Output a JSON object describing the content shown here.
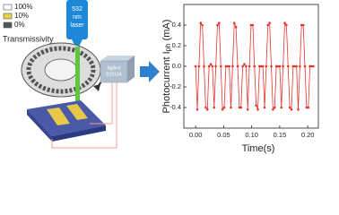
{
  "legend": {
    "title": "Transmissivity",
    "items": [
      "100%",
      "10%",
      "0%"
    ]
  },
  "laser": [
    "532",
    "nm",
    "laser"
  ],
  "instrument": [
    "Agilent",
    "B2911A"
  ],
  "chart_data": {
    "type": "line",
    "ylabel": [
      "Photocurrent I",
      "ph",
      " (mA)"
    ],
    "xlabel": "Time(s)",
    "color": "#e8332c",
    "x": [
      0,
      0.003,
      0.006,
      0.009,
      0.012,
      0.015,
      0.018,
      0.021,
      0.024,
      0.027,
      0.03,
      0.033,
      0.036,
      0.039,
      0.042,
      0.045,
      0.048,
      0.051,
      0.054,
      0.057,
      0.06,
      0.063,
      0.066,
      0.069,
      0.072,
      0.075,
      0.078,
      0.081,
      0.084,
      0.087,
      0.09,
      0.093,
      0.096,
      0.099,
      0.102,
      0.105,
      0.108,
      0.111,
      0.114,
      0.117,
      0.12,
      0.123,
      0.126,
      0.129,
      0.132,
      0.135,
      0.138,
      0.141,
      0.144,
      0.147,
      0.15,
      0.153,
      0.156,
      0.159,
      0.162,
      0.165,
      0.168,
      0.171,
      0.174,
      0.177,
      0.18,
      0.183,
      0.186,
      0.189,
      0.192,
      0.195,
      0.198,
      0.201,
      0.204,
      0.207,
      0.21
    ],
    "values": [
      0,
      -0.42,
      0,
      0.42,
      0.4,
      0,
      -0.4,
      -0.42,
      0,
      0.02,
      0,
      -0.4,
      0,
      0.4,
      0.42,
      0,
      -0.42,
      -0.4,
      0,
      0,
      0,
      -0.4,
      0,
      0.42,
      0.38,
      0,
      -0.4,
      -0.4,
      0,
      0.02,
      0,
      -0.42,
      0,
      0.4,
      0.4,
      0,
      -0.38,
      -0.42,
      0,
      0,
      0,
      -0.4,
      0,
      0.4,
      0.42,
      0,
      -0.42,
      -0.4,
      0,
      0,
      0,
      -0.4,
      0,
      0.42,
      0.4,
      0,
      -0.4,
      -0.42,
      0,
      0,
      0,
      -0.42,
      0,
      0.4,
      0.4,
      0,
      -0.4,
      -0.4,
      0,
      0,
      0
    ],
    "xlim": [
      -0.021,
      0.219
    ],
    "ylim": [
      -0.6,
      0.6
    ],
    "xticks": [
      {
        "value": 0,
        "label": "0.00"
      },
      {
        "value": 0.05,
        "label": "0.05"
      },
      {
        "value": 0.1,
        "label": "0.10"
      },
      {
        "value": 0.15,
        "label": "0.15"
      },
      {
        "value": 0.2,
        "label": "0.20"
      }
    ],
    "yticks": [
      -0.4,
      -0.2,
      {
        "value": 0,
        "label": "0.0"
      },
      0.2,
      0.4
    ]
  }
}
